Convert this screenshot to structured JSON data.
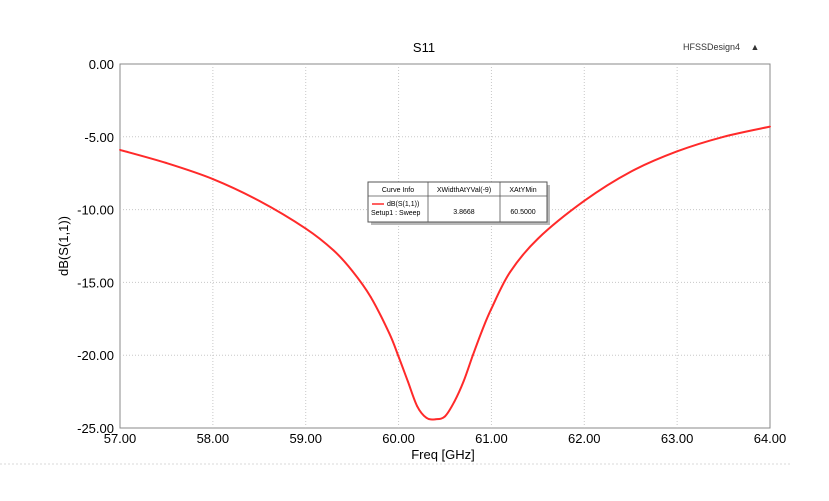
{
  "design_name": "HFSSDesign4",
  "design_marker": "▲",
  "chart_data": {
    "type": "line",
    "title": "S11",
    "xlabel": "Freq [GHz]",
    "ylabel": "dB(S(1,1))",
    "xlim": [
      57.0,
      64.0
    ],
    "ylim": [
      -25.0,
      0.0
    ],
    "x_ticks": [
      "57.00",
      "58.00",
      "59.00",
      "60.00",
      "61.00",
      "62.00",
      "63.00",
      "64.00"
    ],
    "y_ticks": [
      "0.00",
      "-5.00",
      "-10.00",
      "-15.00",
      "-20.00",
      "-25.00"
    ],
    "grid": true,
    "series": [
      {
        "name": "dB(S(1,1))",
        "color": "#ff2a2a",
        "x": [
          57.0,
          57.5,
          58.0,
          58.5,
          59.0,
          59.3,
          59.5,
          59.7,
          59.9,
          60.0,
          60.1,
          60.2,
          60.3,
          60.4,
          60.5,
          60.6,
          60.7,
          60.8,
          60.9,
          61.0,
          61.2,
          61.5,
          62.0,
          62.5,
          63.0,
          63.5,
          64.0
        ],
        "y": [
          -5.9,
          -6.8,
          -7.9,
          -9.4,
          -11.3,
          -12.8,
          -14.2,
          -16.0,
          -18.5,
          -20.1,
          -21.8,
          -23.5,
          -24.3,
          -24.4,
          -24.2,
          -23.2,
          -21.8,
          -20.0,
          -18.3,
          -16.8,
          -14.3,
          -12.0,
          -9.4,
          -7.4,
          -6.0,
          -5.0,
          -4.3
        ]
      }
    ],
    "legend": {
      "placement": "center",
      "headers": [
        "Curve Info",
        "XWidthAtYVal(-9)",
        "XAtYMin"
      ],
      "rows": [
        {
          "name": "dB(S(1,1))",
          "setup": "Setup1 : Sweep",
          "width": "3.8668",
          "xatymin": "60.5000"
        }
      ]
    }
  }
}
